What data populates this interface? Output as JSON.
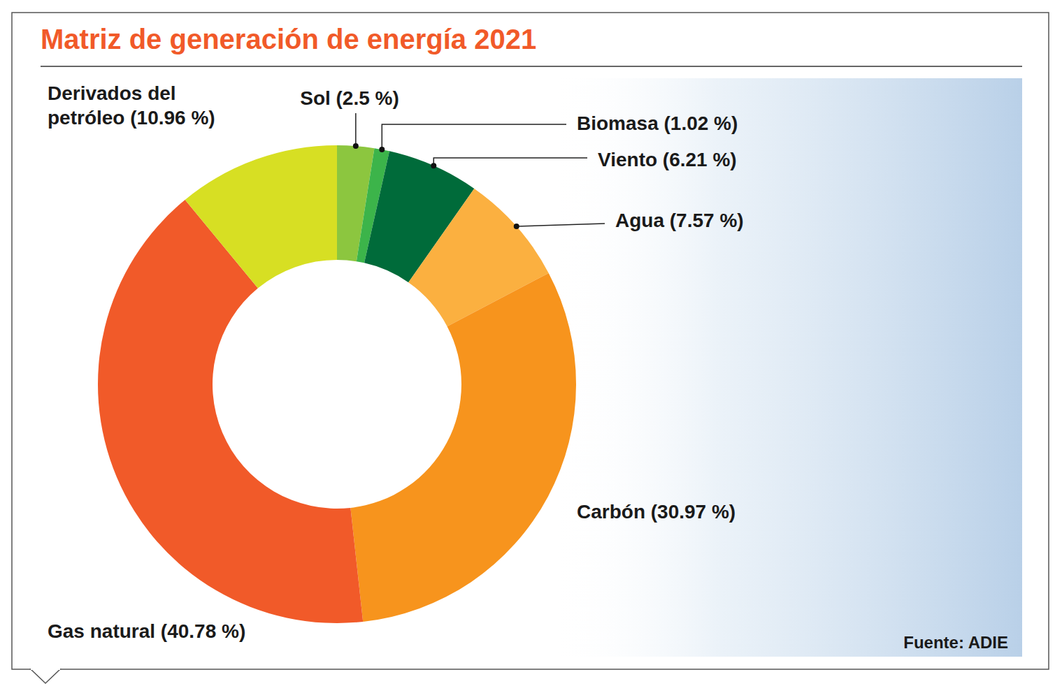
{
  "chart_data": {
    "type": "donut",
    "title": "Matriz de generación de energía 2021",
    "categories": [
      "Sol",
      "Biomasa",
      "Viento",
      "Agua",
      "Carbón",
      "Gas natural",
      "Derivados del petróleo"
    ],
    "values": [
      2.5,
      1.02,
      6.21,
      7.57,
      30.97,
      40.78,
      10.96
    ],
    "value_labels": [
      "Sol (2.5 %)",
      "Biomasa (1.02 %)",
      "Viento (6.21 %)",
      "Agua (7.57 %)",
      "Carbón (30.97 %)",
      "Gas natural (40.78 %)",
      "Derivados del petróleo (10.96 %)"
    ],
    "colors": [
      "#8cc63f",
      "#3cb44a",
      "#006b3a",
      "#fbb040",
      "#f7941d",
      "#f15a29",
      "#d7df23"
    ],
    "data_labels": true,
    "source": "Fuente: ADIE"
  }
}
